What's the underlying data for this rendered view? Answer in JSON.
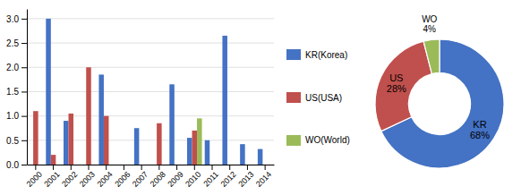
{
  "chart_data": [
    {
      "type": "bar",
      "categories": [
        "2000",
        "2001",
        "2002",
        "2003",
        "2004",
        "2006",
        "2007",
        "2008",
        "2009",
        "2010",
        "2011",
        "2012",
        "2013",
        "2014"
      ],
      "series": [
        {
          "name": "KR(Korea)",
          "color": "#4472C4",
          "values": [
            0.0,
            3.0,
            0.9,
            0.0,
            1.85,
            0.0,
            0.75,
            0.0,
            1.65,
            0.55,
            0.5,
            2.65,
            0.42,
            0.32
          ]
        },
        {
          "name": "US(USA)",
          "color": "#C0504D",
          "values": [
            1.1,
            0.2,
            1.05,
            2.0,
            1.0,
            0.0,
            0.0,
            0.85,
            0.0,
            0.7,
            0.0,
            0.0,
            0.0,
            0.0
          ]
        },
        {
          "name": "WO(World)",
          "color": "#9BBB59",
          "values": [
            0.0,
            0.0,
            0.0,
            0.0,
            0.0,
            0.0,
            0.0,
            0.0,
            0.0,
            0.95,
            0.0,
            0.0,
            0.0,
            0.0
          ]
        }
      ],
      "ylim": [
        0,
        3.2
      ],
      "yticks": [
        {
          "value": 0,
          "label": "0.0"
        },
        0.5,
        {
          "value": 1.0,
          "label": "1.0"
        },
        1.5,
        {
          "value": 2.0,
          "label": "2.0"
        },
        2.5,
        {
          "value": 3.0,
          "label": "3.0"
        }
      ],
      "grid": true,
      "legend": "right"
    },
    {
      "type": "donut",
      "categories": [
        "KR",
        "US",
        "WO"
      ],
      "values": [
        68,
        28,
        4
      ],
      "value_labels": [
        "68%",
        "28%",
        "4%"
      ],
      "colors": [
        "#4472C4",
        "#C0504D",
        "#9BBB59"
      ],
      "data_labels": true
    }
  ]
}
